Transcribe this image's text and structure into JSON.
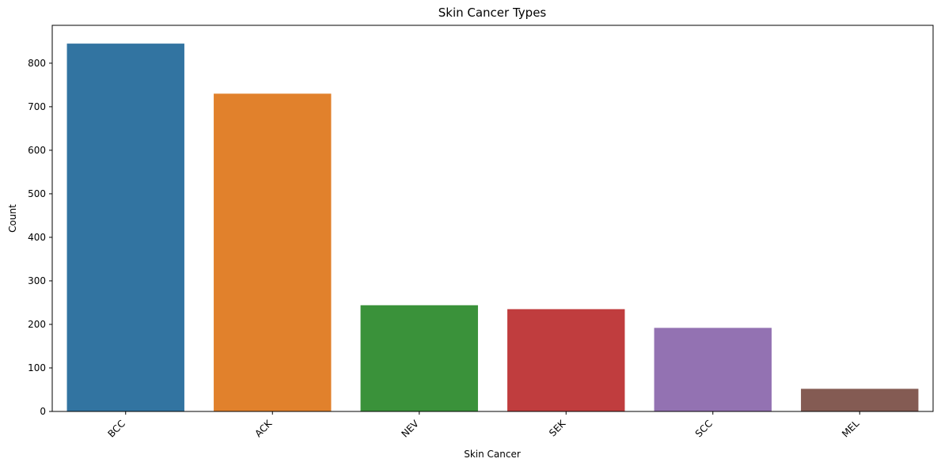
{
  "chart_data": {
    "type": "bar",
    "title": "Skin Cancer Types",
    "xlabel": "Skin Cancer",
    "ylabel": "Count",
    "categories": [
      "BCC",
      "ACK",
      "NEV",
      "SEK",
      "SCC",
      "MEL"
    ],
    "values": [
      845,
      730,
      244,
      235,
      192,
      52
    ],
    "colors": [
      "#3274a1",
      "#e1812c",
      "#3a923a",
      "#c03d3e",
      "#9372b2",
      "#845b53"
    ],
    "ylim": [
      0,
      887
    ],
    "yticks": [
      0,
      100,
      200,
      300,
      400,
      500,
      600,
      700,
      800
    ],
    "grid": false,
    "legend": "none"
  }
}
